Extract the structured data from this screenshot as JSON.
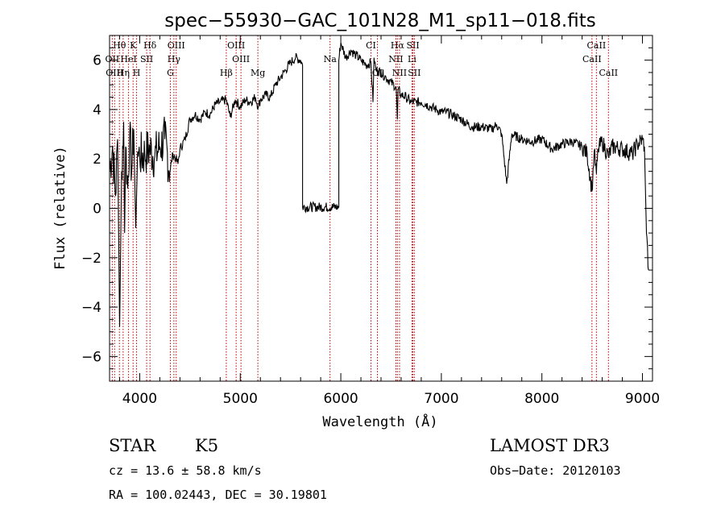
{
  "chart_data": {
    "type": "line",
    "title": "spec−55930−GAC_101N28_M1_sp11−018.fits",
    "xlabel": "Wavelength (Å)",
    "ylabel": "Flux (relative)",
    "xlim": [
      3700,
      9100
    ],
    "ylim": [
      -7,
      7
    ],
    "xticks": [
      4000,
      5000,
      6000,
      7000,
      8000,
      9000
    ],
    "yticks": [
      -6,
      -4,
      -2,
      0,
      2,
      4,
      6
    ],
    "grid": false,
    "series": [
      {
        "name": "flux",
        "x": [
          3700,
          3730,
          3760,
          3780,
          3800,
          3820,
          3840,
          3850,
          3860,
          3880,
          3900,
          3920,
          3940,
          3960,
          3980,
          4000,
          4050,
          4100,
          4150,
          4200,
          4250,
          4300,
          4330,
          4360,
          4380,
          4400,
          4450,
          4500,
          4550,
          4600,
          4650,
          4700,
          4750,
          4800,
          4860,
          4900,
          4950,
          5000,
          5050,
          5100,
          5150,
          5180,
          5200,
          5250,
          5300,
          5350,
          5400,
          5450,
          5500,
          5550,
          5600,
          5620,
          5620,
          5980,
          5980,
          6000,
          6050,
          6100,
          6150,
          6200,
          6250,
          6300,
          6320,
          6330,
          6350,
          6400,
          6450,
          6500,
          6550,
          6563,
          6570,
          6600,
          6650,
          6700,
          6750,
          6800,
          6850,
          6900,
          6950,
          7000,
          7050,
          7100,
          7200,
          7300,
          7400,
          7500,
          7550,
          7600,
          7650,
          7700,
          7800,
          7900,
          8000,
          8100,
          8200,
          8300,
          8400,
          8450,
          8498,
          8520,
          8542,
          8560,
          8600,
          8662,
          8700,
          8800,
          8900,
          8950,
          9000,
          9020,
          9040,
          9060
        ],
        "y": [
          1.5,
          2.5,
          0.5,
          2.8,
          -4.8,
          1.5,
          3.5,
          -1.0,
          2.5,
          0.8,
          3.0,
          1.5,
          3.2,
          -0.8,
          2.3,
          2.1,
          2.2,
          2.4,
          2.1,
          2.5,
          2.8,
          1.5,
          2.2,
          2.0,
          1.8,
          2.4,
          2.8,
          3.6,
          3.8,
          3.6,
          3.9,
          3.8,
          4.2,
          4.3,
          4.4,
          3.7,
          4.4,
          4.1,
          4.4,
          4.3,
          4.5,
          4.1,
          4.4,
          4.6,
          4.5,
          5.0,
          5.3,
          5.6,
          5.9,
          6.1,
          6.0,
          5.8,
          0.05,
          0.05,
          6.0,
          6.7,
          6.1,
          6.4,
          6.2,
          6.0,
          5.8,
          5.9,
          4.3,
          6.1,
          5.6,
          5.5,
          5.3,
          5.1,
          4.9,
          3.6,
          4.8,
          4.6,
          4.5,
          4.3,
          4.3,
          4.3,
          4.2,
          4.1,
          4.0,
          3.9,
          3.9,
          3.8,
          3.6,
          3.3,
          3.3,
          3.2,
          3.4,
          3.0,
          1.0,
          3.0,
          2.8,
          2.7,
          2.8,
          2.4,
          2.6,
          2.7,
          2.5,
          2.2,
          0.7,
          2.3,
          1.4,
          2.4,
          2.7,
          2.1,
          2.5,
          2.4,
          2.2,
          2.6,
          2.8,
          2.5,
          -1.0,
          -2.5
        ]
      }
    ],
    "lines": [
      {
        "label": "Hθ",
        "x": 3798,
        "row": 0
      },
      {
        "label": "K",
        "x": 3934,
        "row": 0
      },
      {
        "label": "Hδ",
        "x": 4102,
        "row": 0
      },
      {
        "label": "OIII",
        "x": 4363,
        "row": 0
      },
      {
        "label": "OIII",
        "x": 4959,
        "row": 0
      },
      {
        "label": "CI",
        "x": 6300,
        "row": 0
      },
      {
        "label": "Hα",
        "x": 6563,
        "row": 0
      },
      {
        "label": "SII",
        "x": 6717,
        "row": 0
      },
      {
        "label": "CaII",
        "x": 8542,
        "row": 0
      },
      {
        "label": "OII",
        "x": 3727,
        "row": 1
      },
      {
        "label": "HeI",
        "x": 3889,
        "row": 1
      },
      {
        "label": "SII",
        "x": 4069,
        "row": 1
      },
      {
        "label": "Hγ",
        "x": 4340,
        "row": 1
      },
      {
        "label": "OIII",
        "x": 5007,
        "row": 1
      },
      {
        "label": "Na",
        "x": 5893,
        "row": 1
      },
      {
        "label": "NII",
        "x": 6548,
        "row": 1
      },
      {
        "label": "Li",
        "x": 6708,
        "row": 1
      },
      {
        "label": "CaII",
        "x": 8498,
        "row": 1
      },
      {
        "label": "OIII",
        "x": 3750,
        "row": 2
      },
      {
        "label": "Hη",
        "x": 3835,
        "row": 2
      },
      {
        "label": "H",
        "x": 3969,
        "row": 2
      },
      {
        "label": "G",
        "x": 4305,
        "row": 2
      },
      {
        "label": "Hβ",
        "x": 4861,
        "row": 2
      },
      {
        "label": "Mg",
        "x": 5175,
        "row": 2
      },
      {
        "label": "OI",
        "x": 6364,
        "row": 2
      },
      {
        "label": "NII",
        "x": 6584,
        "row": 2
      },
      {
        "label": "SII",
        "x": 6731,
        "row": 2
      },
      {
        "label": "CaII",
        "x": 8662,
        "row": 2
      }
    ]
  },
  "info": {
    "object_class": "STAR",
    "subclass": "K5",
    "survey": "LAMOST DR3",
    "cz": "cz = 13.6 ± 58.8 km/s",
    "obs_date": "Obs−Date: 20120103",
    "coords": "RA = 100.02443, DEC =  30.19801"
  }
}
